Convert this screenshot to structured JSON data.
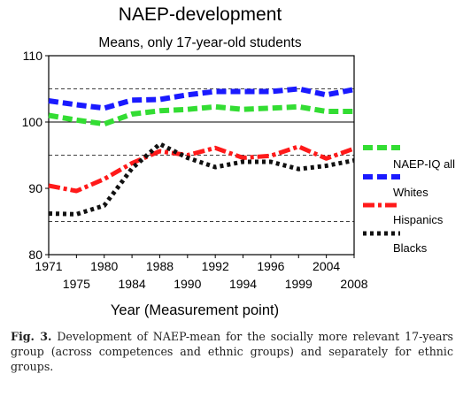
{
  "chart_data": {
    "type": "line",
    "title": "NAEP-development",
    "subtitle": "Means, only 17-year-old students",
    "xlabel": "Year (Measurement point)",
    "ylabel": "",
    "ylim": [
      80,
      110
    ],
    "yticks": [
      80,
      90,
      100,
      110
    ],
    "x": [
      1971,
      1975,
      1980,
      1984,
      1988,
      1990,
      1992,
      1994,
      1996,
      1999,
      2004,
      2008
    ],
    "x_tick_labels_upper": [
      "1971",
      "1980",
      "1988",
      "1992",
      "1996",
      "2004"
    ],
    "x_tick_labels_lower": [
      "1975",
      "1984",
      "1990",
      "1994",
      "1999",
      "2008"
    ],
    "grid": "dashed horizontal gridlines at 85, 95, 105; solid line at 100",
    "legend_position": "right",
    "series": [
      {
        "name": "NAEP-IQ all",
        "color": "#33dd33",
        "values": [
          101,
          100.3,
          99.7,
          101.2,
          101.7,
          101.9,
          102.3,
          101.9,
          102.1,
          102.3,
          101.6,
          101.6
        ]
      },
      {
        "name": "Whites",
        "color": "#1a1aff",
        "values": [
          103.2,
          102.6,
          102.1,
          103.3,
          103.4,
          104.1,
          104.6,
          104.6,
          104.6,
          105,
          104.1,
          104.9
        ]
      },
      {
        "name": "Hispanics",
        "color": "#ff1a1a",
        "values": [
          90.4,
          89.6,
          91.4,
          93.8,
          95.6,
          95,
          96.1,
          94.6,
          94.9,
          96.3,
          94.5,
          96
        ]
      },
      {
        "name": "Blacks",
        "color": "#111111",
        "values": [
          86.2,
          86.1,
          87.4,
          93,
          96.7,
          94.6,
          93.2,
          94,
          94,
          92.9,
          93.4,
          94.2
        ]
      }
    ]
  },
  "caption": {
    "label": "Fig. 3.",
    "text": "Development of NAEP-mean for the socially more relevant 17-years group (across competences and ethnic groups) and separately for ethnic groups."
  }
}
